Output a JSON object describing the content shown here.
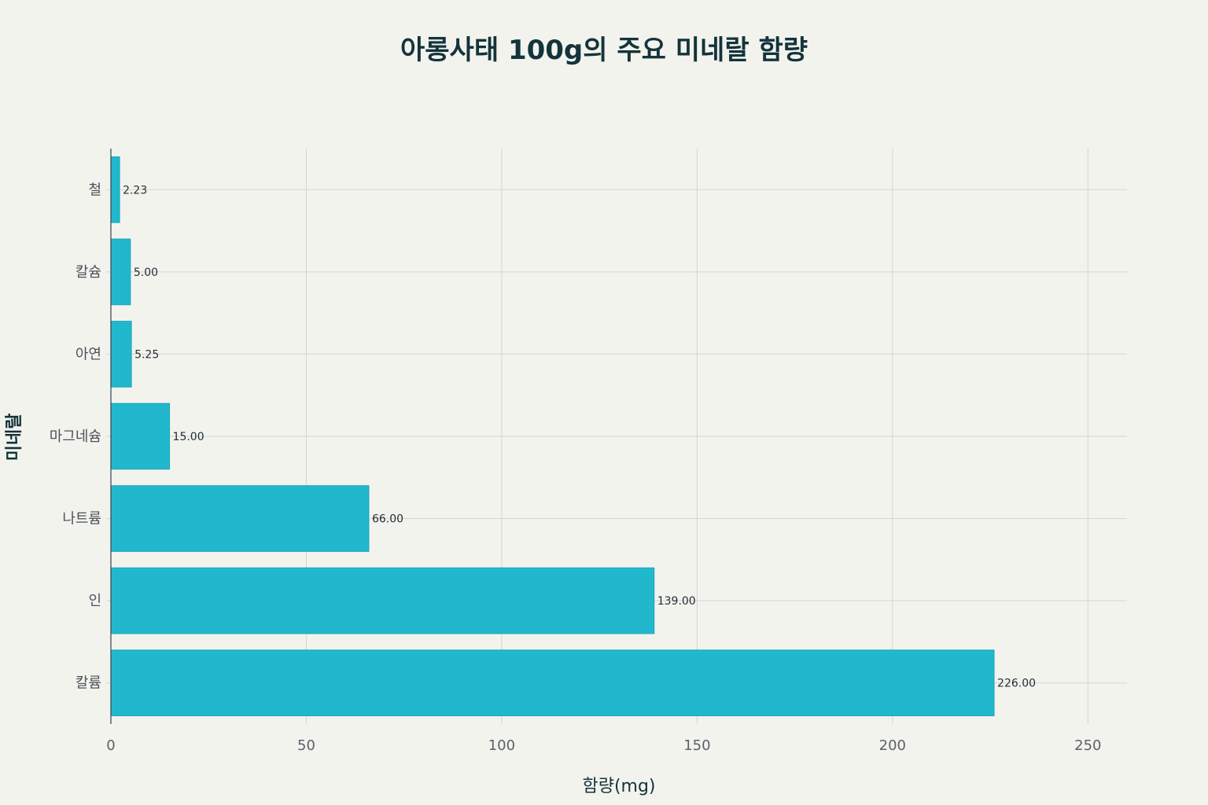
{
  "chart_data": {
    "type": "bar",
    "orientation": "horizontal",
    "title": "아롱사태 100g의 주요 미네랄 함량",
    "xlabel": "함량(mg)",
    "ylabel": "미네랄",
    "categories": [
      "칼륨",
      "인",
      "나트륨",
      "마그네슘",
      "아연",
      "칼슘",
      "철"
    ],
    "values": [
      226.0,
      139.0,
      66.0,
      15.0,
      5.25,
      5.0,
      2.23
    ],
    "value_labels": [
      "226.00",
      "139.00",
      "66.00",
      "15.00",
      "5.25",
      "5.00",
      "2.23"
    ],
    "xlim": [
      0,
      260
    ],
    "xticks": [
      0,
      50,
      100,
      150,
      200,
      250
    ],
    "grid": true,
    "bar_color": "#21b8cd"
  }
}
